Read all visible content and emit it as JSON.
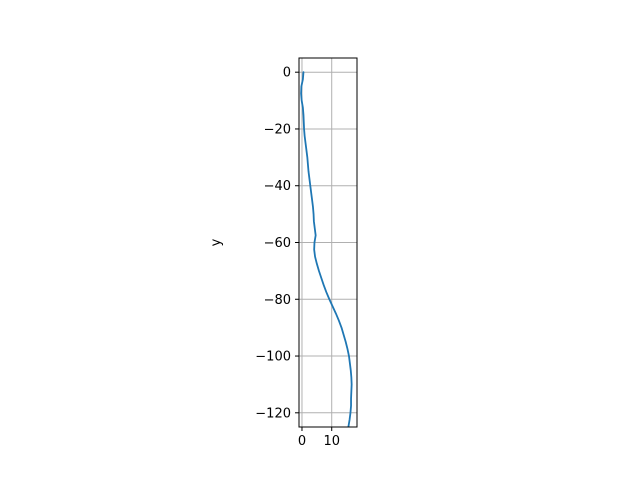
{
  "chart_data": {
    "type": "line",
    "title": "",
    "xlabel": "",
    "ylabel": "y",
    "xlim": [
      -1,
      18.5
    ],
    "ylim": [
      -125,
      5
    ],
    "xticks": [
      0,
      10
    ],
    "yticks": [
      0,
      -20,
      -40,
      -60,
      -80,
      -100,
      -120
    ],
    "grid": true,
    "series": [
      {
        "name": "",
        "color": "#1f77b4",
        "x": [
          0.5,
          0.3,
          -0.2,
          -0.3,
          -0.1,
          0.3,
          0.5,
          0.6,
          0.7,
          0.9,
          1.2,
          1.5,
          1.8,
          2.0,
          2.2,
          2.5,
          2.8,
          3.1,
          3.4,
          3.7,
          3.9,
          4.0,
          4.3,
          4.6,
          4.2,
          4.1,
          4.4,
          5.0,
          5.7,
          6.5,
          7.3,
          8.2,
          9.2,
          10.3,
          11.4,
          12.4,
          13.3,
          14.0,
          14.7,
          15.3,
          15.8,
          16.1,
          16.4,
          16.6,
          16.7,
          16.6,
          16.5,
          16.5,
          16.3,
          16.0,
          15.6,
          15.3
        ],
        "y": [
          0,
          -2.5,
          -5,
          -7.5,
          -10,
          -12.5,
          -15,
          -17.5,
          -20,
          -22.5,
          -25,
          -27.5,
          -30,
          -32.5,
          -35,
          -37.5,
          -40,
          -42.5,
          -45,
          -47.5,
          -50,
          -52.5,
          -55,
          -57.5,
          -60,
          -62.5,
          -65,
          -67.5,
          -70,
          -72.5,
          -75,
          -77.5,
          -80,
          -82.5,
          -85,
          -87.5,
          -90,
          -92.5,
          -95,
          -97.5,
          -100,
          -102.5,
          -105,
          -107.5,
          -110,
          -112.5,
          -115,
          -117.5,
          -120,
          -122.5,
          -125,
          -127.5
        ]
      }
    ]
  }
}
